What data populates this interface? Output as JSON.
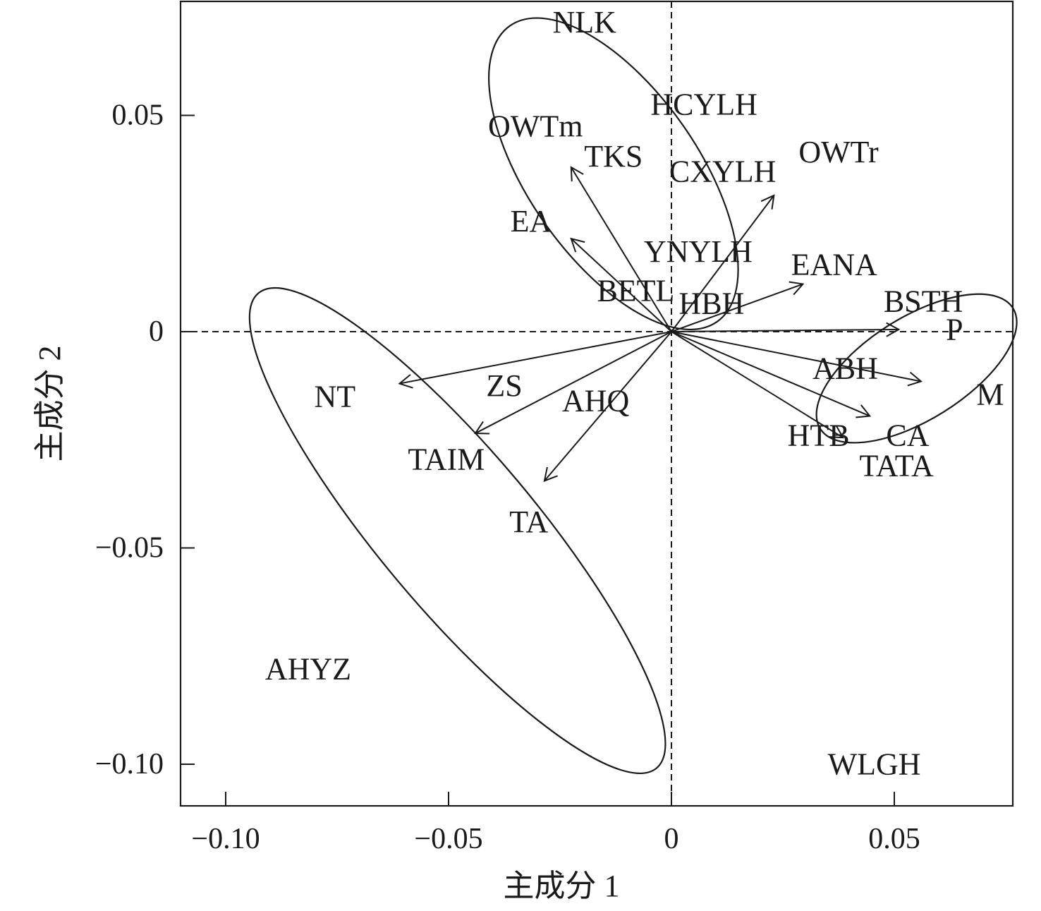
{
  "chart_data": {
    "type": "scatter",
    "title": "",
    "xlabel": "主成分 1",
    "ylabel": "主成分 2",
    "xlim": [
      -0.11,
      0.077
    ],
    "ylim": [
      -0.11,
      0.077
    ],
    "x_ticks": [
      -0.1,
      -0.05,
      0,
      0.05
    ],
    "x_tick_labels": [
      "−0.10",
      "−0.05",
      "0",
      "0.05"
    ],
    "y_ticks": [
      0.05,
      0,
      -0.05,
      -0.1
    ],
    "y_tick_labels": [
      "0.05",
      "0",
      "−0.05",
      "−0.10"
    ],
    "grid": false,
    "reference_lines": {
      "x": 0,
      "y": 0,
      "style": "dashed"
    },
    "samples": [
      {
        "label": "NLK",
        "x": -0.0195,
        "y": 0.0715
      },
      {
        "label": "HCYLH",
        "x": 0.0073,
        "y": 0.0525
      },
      {
        "label": "OWTm",
        "x": -0.0305,
        "y": 0.0475
      },
      {
        "label": "OWTr",
        "x": 0.0375,
        "y": 0.0415
      },
      {
        "label": "TKS",
        "x": -0.013,
        "y": 0.0405
      },
      {
        "label": "CXYLH",
        "x": 0.0115,
        "y": 0.037
      },
      {
        "label": "EA",
        "x": -0.0315,
        "y": 0.0255
      },
      {
        "label": "YNYLH",
        "x": 0.006,
        "y": 0.0185
      },
      {
        "label": "EANA",
        "x": 0.0365,
        "y": 0.0155
      },
      {
        "label": "BETL",
        "x": -0.008,
        "y": 0.0095
      },
      {
        "label": "HBH",
        "x": 0.009,
        "y": 0.0065
      },
      {
        "label": "BSTH",
        "x": 0.0565,
        "y": 0.007
      },
      {
        "label": "P",
        "x": 0.0635,
        "y": 0.0005
      },
      {
        "label": "ABH",
        "x": 0.039,
        "y": -0.0085
      },
      {
        "label": "ZS",
        "x": -0.0375,
        "y": -0.0125
      },
      {
        "label": "M",
        "x": 0.0715,
        "y": -0.0145
      },
      {
        "label": "NT",
        "x": -0.0755,
        "y": -0.015
      },
      {
        "label": "AHQ",
        "x": -0.017,
        "y": -0.016
      },
      {
        "label": "HTB",
        "x": 0.033,
        "y": -0.024
      },
      {
        "label": "CA",
        "x": 0.053,
        "y": -0.024
      },
      {
        "label": "TAIM",
        "x": -0.0505,
        "y": -0.0295
      },
      {
        "label": "TATA",
        "x": 0.0505,
        "y": -0.031
      },
      {
        "label": "TA",
        "x": -0.032,
        "y": -0.044
      },
      {
        "label": "AHYZ",
        "x": -0.0815,
        "y": -0.078
      },
      {
        "label": "WLGH",
        "x": 0.0455,
        "y": -0.1
      }
    ],
    "vectors": [
      {
        "x": -0.0225,
        "y": 0.038
      },
      {
        "x": -0.0225,
        "y": 0.0215
      },
      {
        "x": 0.023,
        "y": 0.0315
      },
      {
        "x": 0.0295,
        "y": 0.011
      },
      {
        "x": 0.051,
        "y": 0.0005
      },
      {
        "x": 0.056,
        "y": -0.0115
      },
      {
        "x": 0.0445,
        "y": -0.0195
      },
      {
        "x": 0.0385,
        "y": -0.0245
      },
      {
        "x": -0.061,
        "y": -0.012
      },
      {
        "x": -0.044,
        "y": -0.0235
      },
      {
        "x": -0.0285,
        "y": -0.0345
      }
    ],
    "ellipses": [
      {
        "cx": -0.013,
        "cy": 0.0365,
        "rx": 0.0405,
        "ry": 0.019,
        "angle": 55
      },
      {
        "cx": 0.055,
        "cy": -0.0085,
        "rx": 0.0255,
        "ry": 0.0115,
        "angle": -32
      },
      {
        "cx": -0.048,
        "cy": -0.046,
        "rx": 0.0695,
        "ry": 0.0175,
        "angle": 50
      }
    ]
  }
}
